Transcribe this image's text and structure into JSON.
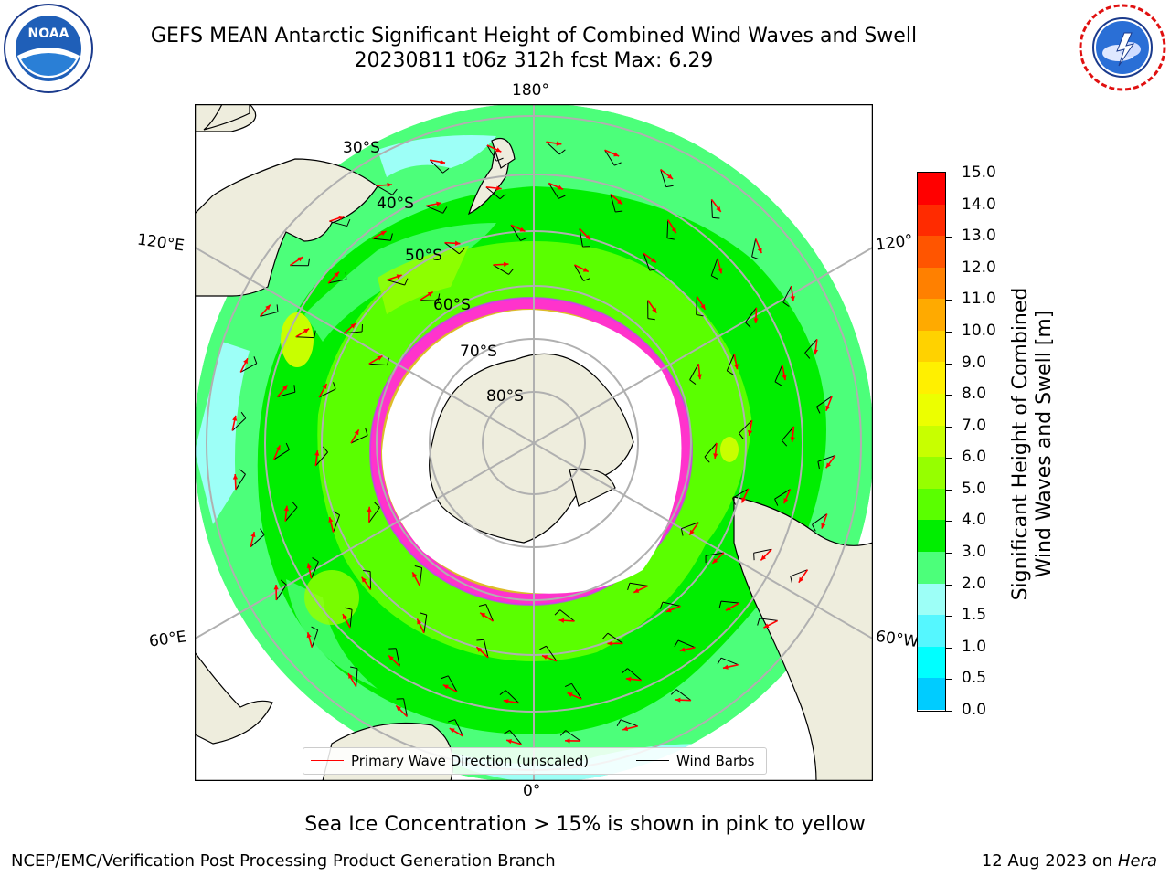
{
  "header": {
    "title_line1": "GEFS MEAN Antarctic Significant Height of Combined Wind Waves and Swell",
    "title_line2": "20230811 t06z 312h fcst   Max: 6.29",
    "left_logo": {
      "icon": "noaa-logo",
      "text": "NOAA",
      "ring_text": "NATIONAL OCEANIC AND ATMOSPHERIC ADMINISTRATION · U.S. DEPARTMENT OF COMMERCE"
    },
    "right_logo": {
      "icon": "nws-logo",
      "ring_text": "NATIONAL WEATHER SERVICE"
    }
  },
  "map": {
    "projection": "south-polar-stereographic",
    "longitude_labels": {
      "top": "180°",
      "bottom": "0°",
      "upper_left": "120°E",
      "lower_left": "60°E",
      "upper_right": "120°",
      "lower_right": "60°W"
    },
    "latitude_labels": [
      "30°S",
      "40°S",
      "50°S",
      "60°S",
      "70°S",
      "80°S"
    ],
    "colors": {
      "land": "#eeeddd",
      "ice_shelf": "#ffffff",
      "primary_wave_arrow": "#ff0000",
      "wind_barb": "#000000",
      "grid": "#b0b0b0",
      "sea_ice": "#ff33cc"
    }
  },
  "legend": {
    "primary_wave_label": "Primary Wave Direction (unscaled)",
    "wind_barbs_label": "Wind Barbs"
  },
  "colorbar": {
    "label_line1": "Significant Height of Combined",
    "label_line2": "Wind Waves and Swell [m]",
    "ticks": [
      "15.0",
      "14.0",
      "13.0",
      "12.0",
      "11.0",
      "10.0",
      "9.0",
      "8.0",
      "7.0",
      "6.0",
      "5.0",
      "4.0",
      "3.0",
      "2.0",
      "1.5",
      "1.0",
      "0.5",
      "0.0"
    ],
    "colors": [
      "#ff0000",
      "#ff2b00",
      "#ff5500",
      "#ff8000",
      "#ffaa00",
      "#ffd200",
      "#fff000",
      "#ecff00",
      "#c8ff00",
      "#96ff00",
      "#5aff00",
      "#00ee00",
      "#4cff7a",
      "#9dfff7",
      "#55f7ff",
      "#00ffff",
      "#00ccff",
      "#0077ff",
      "#0000ff"
    ]
  },
  "caption": "Sea Ice Concentration > 15% is shown in pink to yellow",
  "footer": {
    "left": "NCEP/EMC/Verification Post Processing Product Generation Branch",
    "right_date": "12 Aug 2023 on ",
    "right_host": "Hera"
  }
}
